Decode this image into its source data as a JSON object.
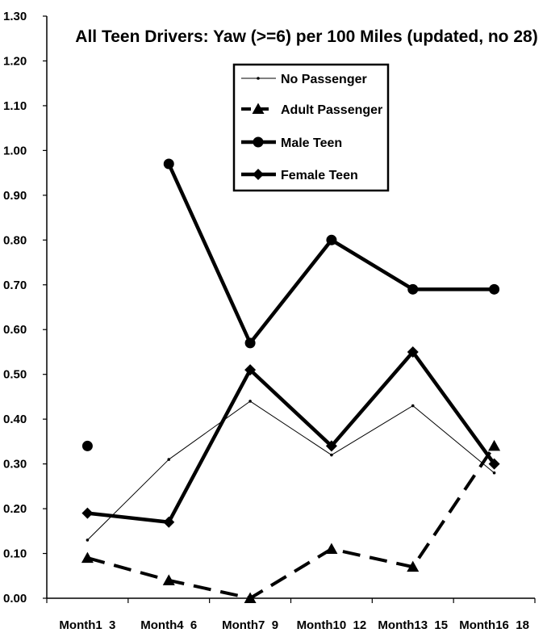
{
  "chart_data": {
    "type": "line",
    "title": "All Teen Drivers: Yaw (>=6) per 100 Miles (updated, no 28)",
    "xlabel": "",
    "ylabel": "",
    "categories": [
      "Month1  3",
      "Month4  6",
      "Month7  9",
      "Month10  12",
      "Month13  15",
      "Month16  18"
    ],
    "ylim": [
      0,
      1.3
    ],
    "yticks": [
      "0.00",
      "0.10",
      "0.20",
      "0.30",
      "0.40",
      "0.50",
      "0.60",
      "0.70",
      "0.80",
      "0.90",
      "1.00",
      "1.10",
      "1.20",
      "1.30"
    ],
    "grid": false,
    "legend_position": "top-center",
    "series": [
      {
        "name": "No Passenger",
        "values": [
          0.13,
          0.31,
          0.44,
          0.32,
          0.43,
          0.28
        ],
        "style": "thin",
        "marker": "dot"
      },
      {
        "name": "Adult Passenger",
        "values": [
          0.09,
          0.04,
          0.0,
          0.11,
          0.07,
          0.34
        ],
        "style": "dashed",
        "marker": "triangle"
      },
      {
        "name": "Male Teen",
        "values": [
          0.34,
          0.97,
          0.57,
          0.8,
          0.69,
          0.69
        ],
        "style": "thick-gapped",
        "marker": "circle"
      },
      {
        "name": "Female Teen",
        "values": [
          0.19,
          0.17,
          0.51,
          0.34,
          0.55,
          0.3
        ],
        "style": "thick",
        "marker": "diamond"
      }
    ],
    "line_color": "#000000"
  }
}
